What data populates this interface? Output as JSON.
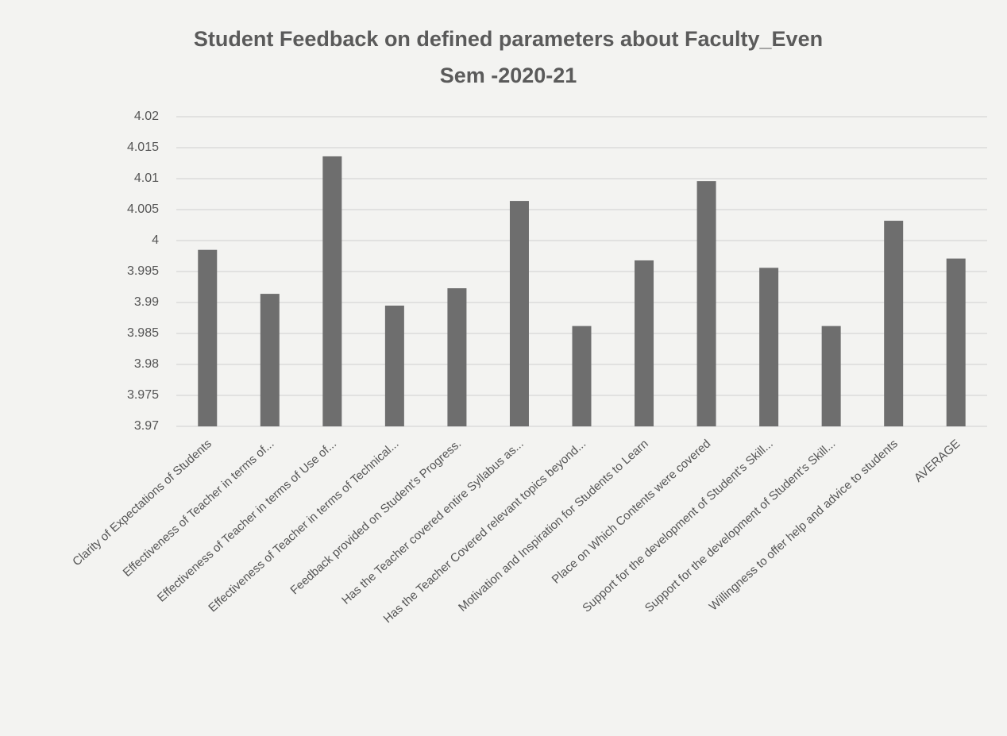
{
  "chart_data": {
    "type": "bar",
    "title": [
      "Student Feedback on defined parameters about Faculty_Even",
      "Sem  -2020-21"
    ],
    "categories": [
      "Clarity of Expectations of Students",
      "Effectiveness of Teacher in terms of...",
      "Effectiveness of Teacher in terms of Use of...",
      "Effectiveness of Teacher in terms of Technical...",
      "Feedback provided on Student's Progress.",
      "Has the Teacher covered entire Syllabus as...",
      "Has the Teacher Covered relevant topics beyond...",
      "Motivation and Inspiration for Students to Learn",
      "Place on Which Contents were covered",
      "Support for the development of Student's Skill...",
      "Support for the development of Student's Skill...",
      "Willingness to offer help and advice to students",
      "AVERAGE"
    ],
    "values": [
      3.9985,
      3.9914,
      4.0136,
      3.9895,
      3.9923,
      4.0064,
      3.9862,
      3.9968,
      4.0096,
      3.9956,
      3.9862,
      4.0032,
      3.9971
    ],
    "color": "#6e6e6e",
    "ylim": [
      3.97,
      4.02
    ],
    "yticks": [
      3.97,
      3.975,
      3.98,
      3.985,
      3.99,
      3.995,
      4,
      4.005,
      4.01,
      4.015,
      4.02
    ],
    "grid": true
  }
}
